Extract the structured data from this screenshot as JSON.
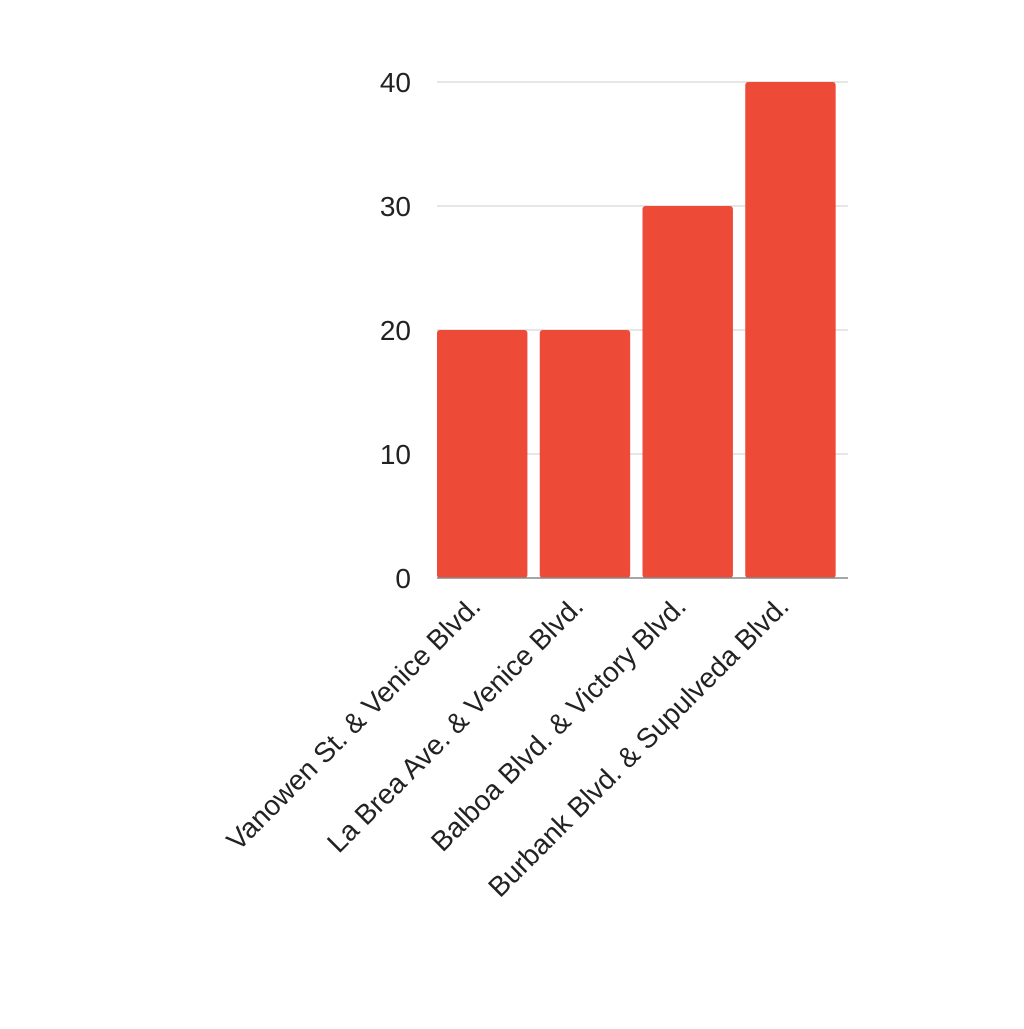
{
  "chart_data": {
    "type": "bar",
    "title": "",
    "xlabel": "",
    "ylabel": "",
    "categories": [
      "Vanowen St. & Venice Blvd.",
      "La Brea Ave. & Venice Blvd.",
      "Balboa Blvd. & Victory Blvd.",
      "Burbank Blvd. & Supulveda Blvd."
    ],
    "values": [
      20,
      20,
      30,
      40
    ],
    "ylim": [
      0,
      40
    ],
    "yticks": [
      0,
      10,
      20,
      30,
      40
    ],
    "grid": true,
    "legend": "none",
    "colors": {
      "bar": "#ee4a38",
      "grid": "#cccccc",
      "axis": "#888888",
      "text": "#222222"
    }
  }
}
